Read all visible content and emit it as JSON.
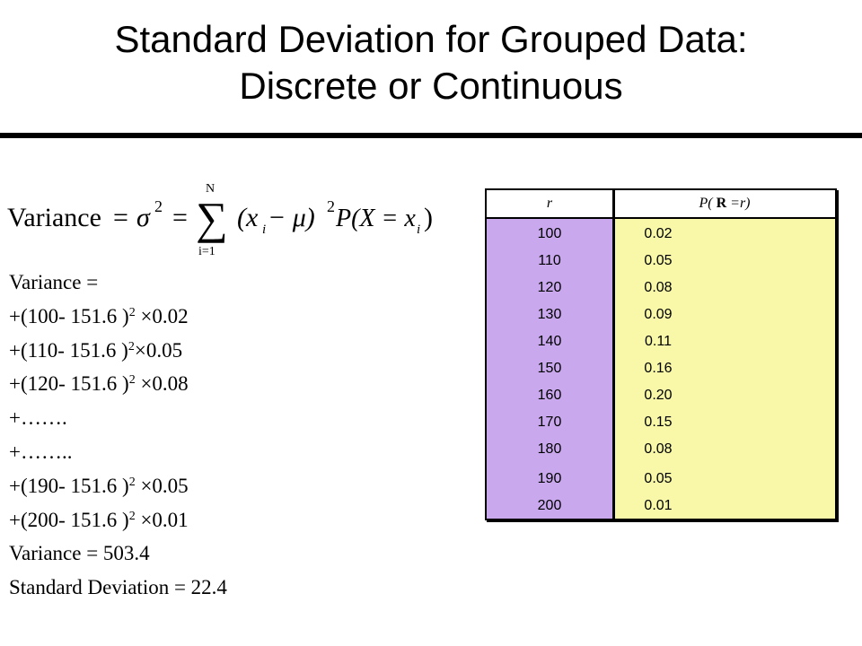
{
  "title": {
    "line1": "Standard Deviation for Grouped Data:",
    "line2": "Discrete or Continuous"
  },
  "formula": {
    "lhs": "Variance",
    "sigma": "σ",
    "sigma_exp": "2",
    "upper_limit": "N",
    "lower_limit": "i=1",
    "body": "(x",
    "sub_i": "i",
    "minus_mu": " − μ)",
    "exp2": "2",
    "prob": "P(X = x",
    "close": ")"
  },
  "calc": [
    {
      "text": "Variance =",
      "sup": "",
      "tail": ""
    },
    {
      "text": "+(100- 151.6 )",
      "sup": "2",
      "tail": " ×0.02"
    },
    {
      "text": "+(110- 151.6 )",
      "sup": "2",
      "tail": "×0.05"
    },
    {
      "text": "+(120- 151.6 )",
      "sup": "2",
      "tail": " ×0.08"
    },
    {
      "text": "+…….",
      "sup": "",
      "tail": ""
    },
    {
      "text": "+……..",
      "sup": "",
      "tail": ""
    },
    {
      "text": "+(190- 151.6 )",
      "sup": "2",
      "tail": " ×0.05"
    },
    {
      "text": "+(200- 151.6 )",
      "sup": "2",
      "tail": " ×0.01"
    },
    {
      "text": "Variance = 503.4",
      "sup": "",
      "tail": ""
    },
    {
      "text": "Standard Deviation = 22.4",
      "sup": "",
      "tail": ""
    }
  ],
  "table": {
    "header_r": "r",
    "header_p_pre": "P( ",
    "header_p_bold": "R",
    "header_p_post": " =r)",
    "colors": {
      "r_column": "#c9a8ee",
      "p_column": "#f8f8a8"
    },
    "rows": [
      {
        "r": "100",
        "p": "0.02"
      },
      {
        "r": "110",
        "p": "0.05"
      },
      {
        "r": "120",
        "p": "0.08"
      },
      {
        "r": "130",
        "p": "0.09"
      },
      {
        "r": "140",
        "p": "0.11"
      },
      {
        "r": "150",
        "p": "0.16"
      },
      {
        "r": "160",
        "p": "0.20"
      },
      {
        "r": "170",
        "p": "0.15"
      },
      {
        "r": "180",
        "p": "0.08"
      },
      {
        "r": "190",
        "p": "0.05"
      },
      {
        "r": "200",
        "p": "0.01"
      }
    ]
  }
}
